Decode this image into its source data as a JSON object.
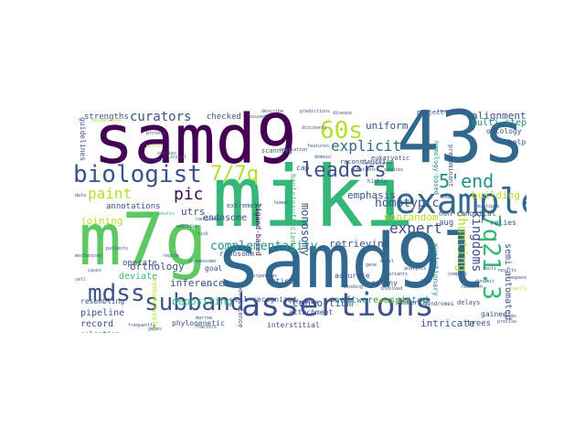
{
  "colors": {
    "deep_purple": "#440154",
    "indigo": "#3b528b",
    "blue": "#31688e",
    "teal": "#21918c",
    "green_teal": "#35b779",
    "green": "#5ec962",
    "lime": "#b5de2b",
    "yellow": "#fde725"
  },
  "words": {
    "samd9": "samd9",
    "43s": "43s",
    "miki": "miki",
    "samd9l": "samd9l",
    "m7g": "m7g",
    "examples": "examples",
    "assertions": "assertions",
    "subband": "subband",
    "biologist": "biologist",
    "seven_q": "7/7q",
    "sixty_s": "60s",
    "leaders": "leaders",
    "five_end": "5'end",
    "seven_q21": "7q21.3",
    "mdss": "mdss",
    "curators": "curators",
    "explicit": "explicit",
    "kingdoms": "kingdoms",
    "shunting": "shunting",
    "paint": "paint",
    "pic": "pic",
    "expert": "expert",
    "homotypic": "homotypic",
    "nonrandom": "nonrandom",
    "complementarity": "complementarity",
    "monosomy": "monosomy",
    "semi_automated": "semi-automated",
    "endosome": "endosome",
    "joining": "joining",
    "orthology": "orthology",
    "emphasis": "emphasis",
    "building": "building",
    "alignments": "alignments",
    "utrs": "utrs",
    "inferences": "inferences",
    "depositing": "depositing",
    "consortium": "consortium",
    "retrieving": "retrieving",
    "pipeline": "pipeline",
    "record": "record",
    "intricate": "intricate",
    "trees": "trees",
    "deviate": "deviate",
    "annotations": "annotations",
    "uniform": "uniform",
    "software_assisted": "software-assisted",
    "multi_step": "multi-step",
    "strengths": "strengths",
    "checked": "checked",
    "operate": "operate",
    "guidelines": "guidelines",
    "resembling": "resembling",
    "selection": "selection",
    "phylogenetic": "phylogenetic",
    "interstitial": "interstitial",
    "attachment": "attachment",
    "well_recognized": "well-recognized",
    "accurate": "accurate",
    "colony": "colony",
    "article": "article",
    "relies": "relies",
    "non_canonical": "non-canonical",
    "aug": "aug",
    "gained": "gained",
    "ontology": "ontology",
    "helps": "helps",
    "eukaryotic": "eukaryotic",
    "evolutionary": "evolutionary",
    "ribosome": "ribosome",
    "goal": "goal",
    "summarize": "summarize",
    "delays": "delays",
    "syndromes": "syndromes",
    "evolution": "evolution",
    "reconstruction": "reconstruction",
    "haploinsufficiency": "haploinsufficiency",
    "ligand_based": "ligand-based",
    "cap": "cap",
    "scanning": "scanning",
    "extremely": "extremely",
    "reference": "reference",
    "project": "project",
    "translation": "translation",
    "predictions": "predictions",
    "lesions": "lesions",
    "highly": "highly",
    "persistence": "persistence",
    "frequently": "frequently",
    "eyebody": "eyebodydysplastic",
    "focused": "focused",
    "forms": "forms",
    "precise": "precise",
    "homology_based": "homology-based",
    "predominant": "predominant",
    "mirror": "mirror",
    "species": "species",
    "cell": "cell",
    "candidate": "candidate",
    "therapeutic": "therapeutic",
    "protein": "protein",
    "genes": "genes",
    "function": "function",
    "data": "data",
    "patients": "patients",
    "region": "region",
    "factors": "factors",
    "organisms": "organisms",
    "features": "features",
    "disease": "disease",
    "studies": "studies",
    "analysis": "analysis",
    "tools": "tools",
    "sequence": "sequence",
    "modelling": "modelling",
    "research": "research",
    "known": "known",
    "human": "human",
    "model": "model",
    "variants": "variants",
    "gene": "gene",
    "initiation": "initiation",
    "domain": "domain",
    "mutations": "mutations",
    "loss": "loss",
    "chromosome": "chromosome",
    "cases": "cases",
    "role": "role",
    "recognition": "recognition",
    "discovery": "discovery",
    "clinical": "clinical",
    "binding": "binding",
    "marrow": "marrow",
    "describe": "describe",
    "involved": "involved",
    "complex": "complex",
    "dynamic": "dynamic",
    "results": "results",
    "mechanisms": "mechanisms",
    "specific": "specific",
    "multiple": "multiple",
    "risk": "risk"
  }
}
